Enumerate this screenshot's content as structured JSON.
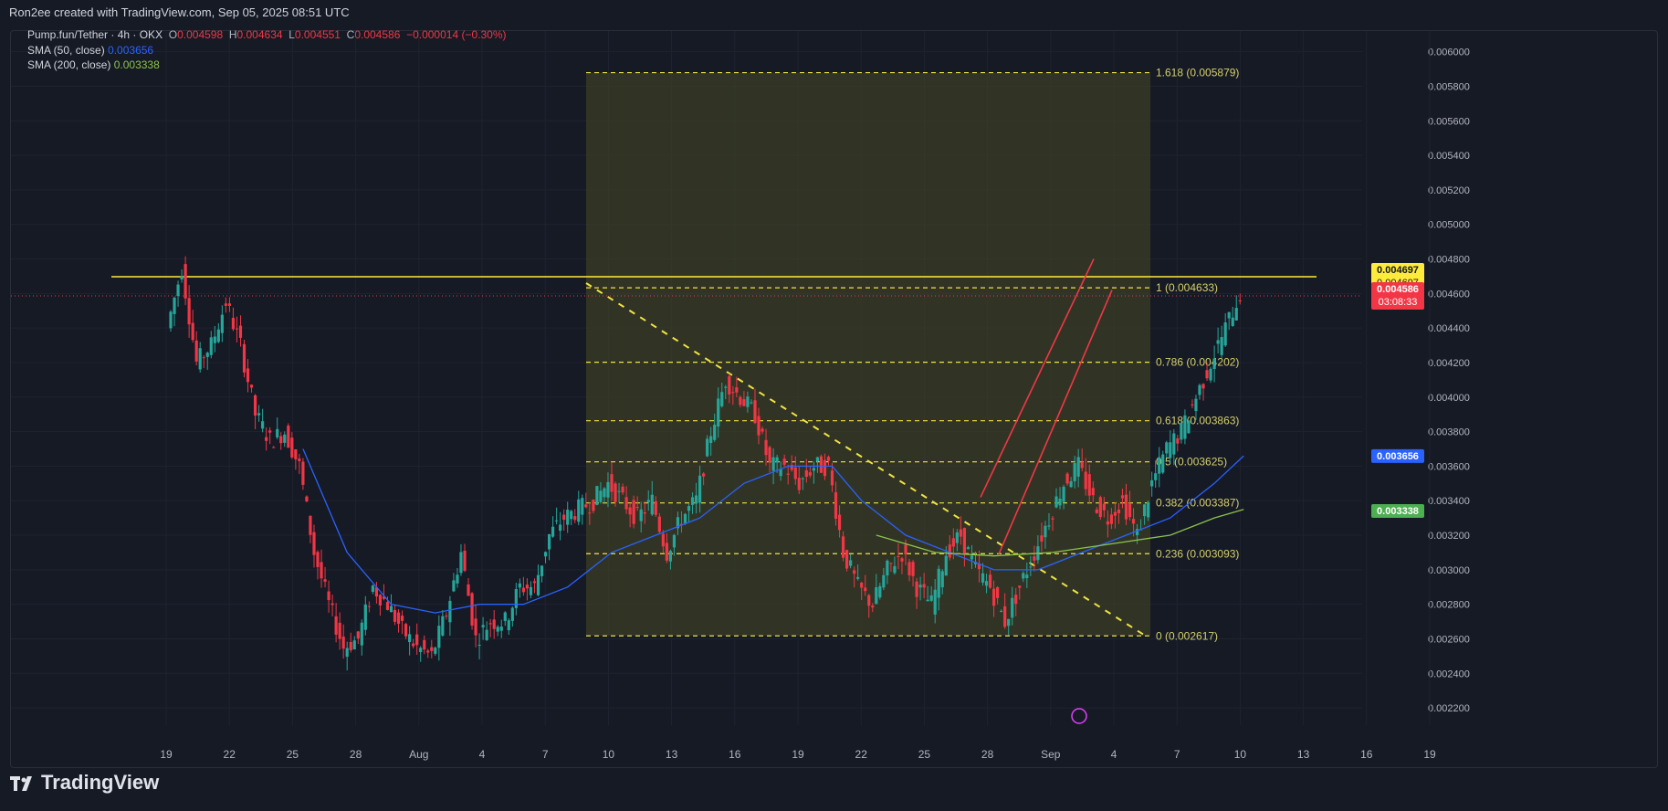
{
  "header": {
    "text": "Ron2ee created with TradingView.com, Sep 05, 2025 08:51 UTC"
  },
  "legend": {
    "symbol": "Pump.fun/Tether · 4h · OKX",
    "ohlc": {
      "o_label": "O",
      "o": "0.004598",
      "h_label": "H",
      "h": "0.004634",
      "l_label": "L",
      "l": "0.004551",
      "c_label": "C",
      "c": "0.004586",
      "change": "−0.000014 (−0.30%)"
    },
    "sma50": {
      "label": "SMA (50, close)",
      "value": "0.003656"
    },
    "sma200": {
      "label": "SMA (200, close)",
      "value": "0.003338"
    }
  },
  "footer": {
    "brand": "TradingView"
  },
  "colors": {
    "bg": "#161a25",
    "up": "#26a69a",
    "down": "#f23645",
    "sma50": "#2962ff",
    "sma200": "#8bc34a",
    "fib": "#f0e442",
    "channel": "#f23645",
    "resistance": "#ffeb3b",
    "fibZone": "#3b3d26"
  },
  "chart_data": {
    "type": "candlestick",
    "x_ticks": [
      "19",
      "22",
      "25",
      "28",
      "Aug",
      "4",
      "7",
      "10",
      "13",
      "16",
      "19",
      "22",
      "25",
      "28",
      "Sep",
      "4",
      "7",
      "10",
      "13",
      "16",
      "19"
    ],
    "y_ticks": [
      "0.006000",
      "0.005800",
      "0.005600",
      "0.005400",
      "0.005200",
      "0.005000",
      "0.004800",
      "0.004600",
      "0.004400",
      "0.004200",
      "0.004000",
      "0.003800",
      "0.003600",
      "0.003400",
      "0.003200",
      "0.003000",
      "0.002800",
      "0.002600",
      "0.002400",
      "0.002200"
    ],
    "y_range": [
      0.0021,
      0.00612
    ],
    "fib_levels": [
      {
        "label": "1.618 (0.005879)",
        "value": 0.005879
      },
      {
        "label": "1 (0.004633)",
        "value": 0.004633
      },
      {
        "label": "0.786 (0.004202)",
        "value": 0.004202
      },
      {
        "label": "0.618 (0.003863)",
        "value": 0.003863
      },
      {
        "label": "0.5 (0.003625)",
        "value": 0.003625
      },
      {
        "label": "0.382 (0.003387)",
        "value": 0.003387
      },
      {
        "label": "0.236 (0.003093)",
        "value": 0.003093
      },
      {
        "label": "0 (0.002617)",
        "value": 0.002617
      }
    ],
    "resistance": 0.004697,
    "price_labels": [
      {
        "text": "0.004697",
        "sub": "0.004697",
        "value": 0.004697,
        "color": "#ffeb3b",
        "text_color": "#131722"
      },
      {
        "text": "0.004586",
        "sub": "03:08:33",
        "value": 0.004586,
        "color": "#f23645",
        "text_color": "#ffffff"
      },
      {
        "text": "0.003656",
        "value": 0.003656,
        "color": "#2962ff",
        "text_color": "#ffffff"
      },
      {
        "text": "0.003338",
        "value": 0.003338,
        "color": "#4caf50",
        "text_color": "#ffffff"
      }
    ],
    "price_path": [
      [
        0,
        0.0044
      ],
      [
        1,
        0.00475
      ],
      [
        2,
        0.0042
      ],
      [
        3,
        0.0043
      ],
      [
        4,
        0.00455
      ],
      [
        5,
        0.0043
      ],
      [
        6,
        0.0039
      ],
      [
        7,
        0.00375
      ],
      [
        8,
        0.0038
      ],
      [
        9,
        0.0036
      ],
      [
        10,
        0.0031
      ],
      [
        11,
        0.0028
      ],
      [
        12,
        0.00255
      ],
      [
        13,
        0.0026
      ],
      [
        14,
        0.0029
      ],
      [
        15,
        0.0028
      ],
      [
        16,
        0.00265
      ],
      [
        17,
        0.00255
      ],
      [
        18,
        0.0025
      ],
      [
        19,
        0.00275
      ],
      [
        20,
        0.0031
      ],
      [
        21,
        0.0026
      ],
      [
        22,
        0.0027
      ],
      [
        23,
        0.0027
      ],
      [
        24,
        0.0029
      ],
      [
        25,
        0.0029
      ],
      [
        26,
        0.0032
      ],
      [
        27,
        0.0033
      ],
      [
        28,
        0.00335
      ],
      [
        29,
        0.0034
      ],
      [
        30,
        0.0035
      ],
      [
        31,
        0.0034
      ],
      [
        32,
        0.0033
      ],
      [
        33,
        0.0034
      ],
      [
        34,
        0.0031
      ],
      [
        35,
        0.0033
      ],
      [
        36,
        0.0034
      ],
      [
        37,
        0.0038
      ],
      [
        38,
        0.0041
      ],
      [
        39,
        0.004
      ],
      [
        40,
        0.0039
      ],
      [
        41,
        0.0036
      ],
      [
        42,
        0.0036
      ],
      [
        43,
        0.0035
      ],
      [
        44,
        0.0036
      ],
      [
        45,
        0.0036
      ],
      [
        46,
        0.0031
      ],
      [
        47,
        0.0029
      ],
      [
        48,
        0.0028
      ],
      [
        49,
        0.003
      ],
      [
        50,
        0.0031
      ],
      [
        51,
        0.0029
      ],
      [
        52,
        0.0028
      ],
      [
        53,
        0.0031
      ],
      [
        54,
        0.0032
      ],
      [
        55,
        0.003
      ],
      [
        56,
        0.0029
      ],
      [
        57,
        0.0027
      ],
      [
        58,
        0.0029
      ],
      [
        59,
        0.0031
      ],
      [
        60,
        0.0033
      ],
      [
        61,
        0.0035
      ],
      [
        62,
        0.0036
      ],
      [
        63,
        0.0034
      ],
      [
        64,
        0.0033
      ],
      [
        65,
        0.0034
      ],
      [
        66,
        0.0032
      ],
      [
        67,
        0.0035
      ],
      [
        68,
        0.0037
      ],
      [
        69,
        0.0038
      ],
      [
        70,
        0.004
      ],
      [
        71,
        0.0042
      ],
      [
        72,
        0.0044
      ],
      [
        73,
        0.0046
      ]
    ],
    "sma50_path": [
      [
        9,
        0.0037
      ],
      [
        12,
        0.0031
      ],
      [
        15,
        0.0028
      ],
      [
        18,
        0.00275
      ],
      [
        21,
        0.0028
      ],
      [
        24,
        0.0028
      ],
      [
        27,
        0.0029
      ],
      [
        30,
        0.0031
      ],
      [
        33,
        0.0032
      ],
      [
        36,
        0.0033
      ],
      [
        39,
        0.0035
      ],
      [
        42,
        0.0036
      ],
      [
        45,
        0.0036
      ],
      [
        47,
        0.0034
      ],
      [
        50,
        0.0032
      ],
      [
        53,
        0.0031
      ],
      [
        56,
        0.003
      ],
      [
        59,
        0.003
      ],
      [
        62,
        0.0031
      ],
      [
        65,
        0.0032
      ],
      [
        68,
        0.0033
      ],
      [
        71,
        0.0035
      ],
      [
        73,
        0.00366
      ]
    ],
    "sma200_path": [
      [
        48,
        0.0032
      ],
      [
        52,
        0.0031
      ],
      [
        56,
        0.00308
      ],
      [
        60,
        0.0031
      ],
      [
        64,
        0.00315
      ],
      [
        68,
        0.0032
      ],
      [
        71,
        0.0033
      ],
      [
        73,
        0.00335
      ]
    ]
  }
}
